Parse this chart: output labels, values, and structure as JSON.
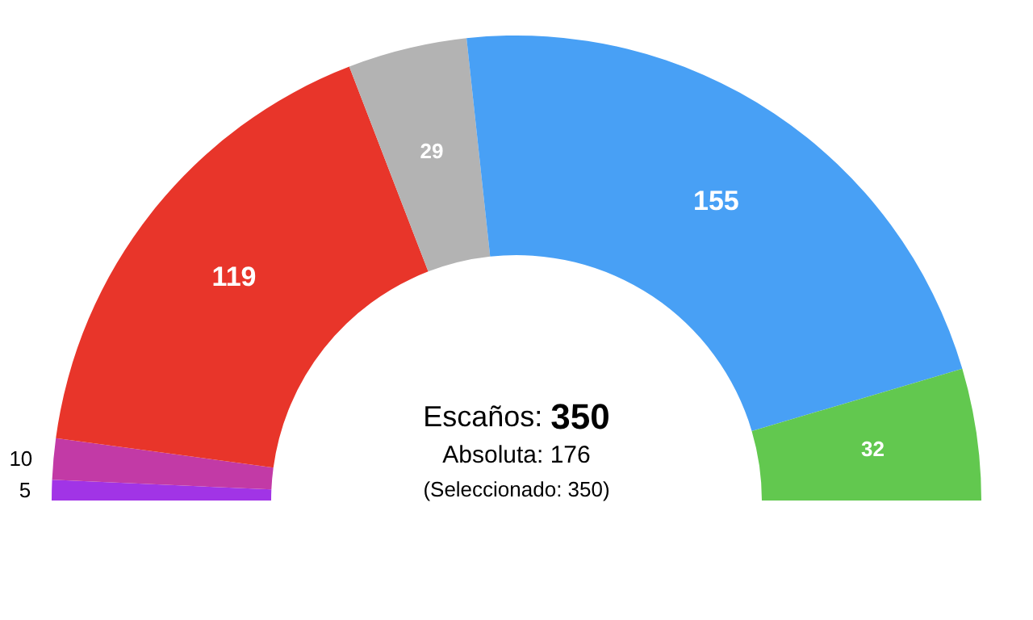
{
  "chart_data": {
    "type": "donut",
    "categories": [
      null,
      null,
      null,
      null,
      null,
      null
    ],
    "values": [
      5,
      10,
      119,
      29,
      155,
      32
    ],
    "colors": [
      "#a134e6",
      "#c23aa6",
      "#e8352a",
      "#b3b3b3",
      "#48a0f5",
      "#62c84f"
    ],
    "data_labels": true,
    "annotations": [
      "Escaños: 350",
      "Absoluta: 176",
      "(Seleccionado: 350)"
    ]
  }
}
